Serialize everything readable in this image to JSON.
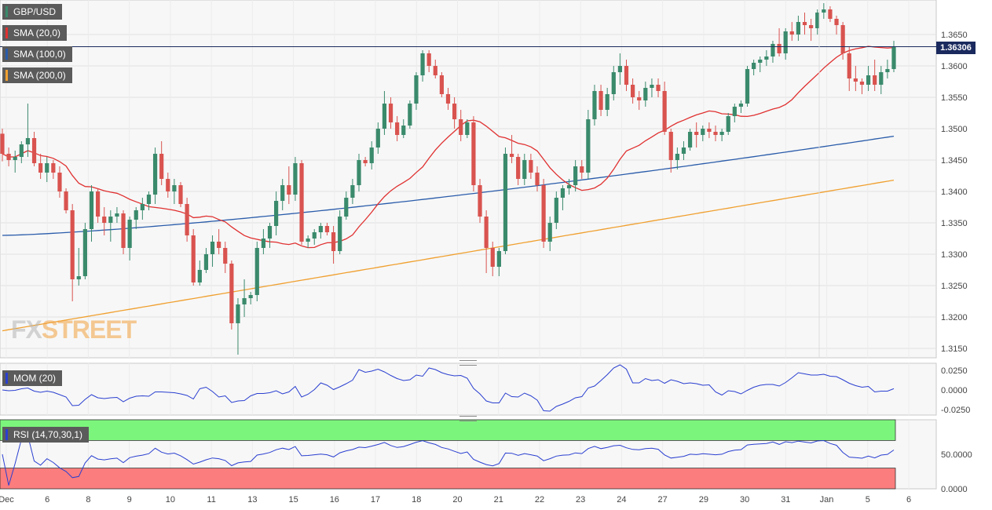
{
  "symbol": "GBP/USD",
  "legends": [
    {
      "label": "GBP/USD",
      "color": "#3a8a6c"
    },
    {
      "label": "SMA (20,0)",
      "color": "#e03030"
    },
    {
      "label": "SMA (100,0)",
      "color": "#2a5caa"
    },
    {
      "label": "SMA (200,0)",
      "color": "#f0a030"
    }
  ],
  "current_price": "1.36306",
  "watermark": {
    "fx": "FX",
    "street": "STREET"
  },
  "indicators": {
    "mom": {
      "label": "MOM (20)",
      "ticks": [
        "0.0250",
        "0.0000",
        "-0.0250"
      ]
    },
    "rsi": {
      "label": "RSI (14,70,30,1)",
      "ticks": [
        "50.0000",
        "0.0000"
      ]
    }
  },
  "colors": {
    "up": "#3a8a6c",
    "down": "#d9534f",
    "sma20": "#e03030",
    "sma100": "#2a5caa",
    "sma200": "#f0a030",
    "mom": "#2a3fd0",
    "rsi": "#2a3fd0",
    "overbought": "#7cf57c",
    "oversold": "#fb7d7d"
  },
  "chart_data": {
    "type": "candlestick",
    "y_ticks": [
      "1.3650",
      "1.3600",
      "1.3550",
      "1.3500",
      "1.3450",
      "1.3400",
      "1.3350",
      "1.3300",
      "1.3250",
      "1.3200",
      "1.3150"
    ],
    "ylim": [
      1.3135,
      1.3705
    ],
    "x_labels": [
      "Dec",
      "6",
      "8",
      "9",
      "10",
      "11",
      "13",
      "15",
      "16",
      "17",
      "18",
      "20",
      "21",
      "22",
      "23",
      "24",
      "27",
      "29",
      "30",
      "31",
      "Jan",
      "5",
      "6"
    ],
    "candles": [
      [
        1.3492,
        1.35,
        1.3448,
        1.346
      ],
      [
        1.346,
        1.347,
        1.344,
        1.345
      ],
      [
        1.345,
        1.3465,
        1.343,
        1.3455
      ],
      [
        1.3455,
        1.348,
        1.3445,
        1.3475
      ],
      [
        1.3475,
        1.354,
        1.3455,
        1.3485
      ],
      [
        1.3485,
        1.3495,
        1.344,
        1.3445
      ],
      [
        1.3445,
        1.346,
        1.342,
        1.343
      ],
      [
        1.343,
        1.3455,
        1.3415,
        1.3445
      ],
      [
        1.3445,
        1.345,
        1.342,
        1.343
      ],
      [
        1.343,
        1.344,
        1.339,
        1.34
      ],
      [
        1.34,
        1.3405,
        1.3365,
        1.337
      ],
      [
        1.337,
        1.338,
        1.3225,
        1.326
      ],
      [
        1.326,
        1.331,
        1.325,
        1.3265
      ],
      [
        1.3265,
        1.335,
        1.326,
        1.334
      ],
      [
        1.334,
        1.341,
        1.332,
        1.34
      ],
      [
        1.34,
        1.3405,
        1.335,
        1.336
      ],
      [
        1.336,
        1.3375,
        1.333,
        1.335
      ],
      [
        1.335,
        1.337,
        1.332,
        1.336
      ],
      [
        1.336,
        1.3375,
        1.335,
        1.3365
      ],
      [
        1.3365,
        1.337,
        1.33,
        1.331
      ],
      [
        1.331,
        1.336,
        1.329,
        1.3355
      ],
      [
        1.3355,
        1.3375,
        1.334,
        1.337
      ],
      [
        1.337,
        1.339,
        1.3355,
        1.338
      ],
      [
        1.338,
        1.34,
        1.337,
        1.3395
      ],
      [
        1.3395,
        1.347,
        1.338,
        1.346
      ],
      [
        1.346,
        1.348,
        1.341,
        1.342
      ],
      [
        1.342,
        1.343,
        1.339,
        1.34
      ],
      [
        1.34,
        1.342,
        1.338,
        1.341
      ],
      [
        1.341,
        1.3415,
        1.3375,
        1.338
      ],
      [
        1.338,
        1.339,
        1.332,
        1.333
      ],
      [
        1.333,
        1.334,
        1.325,
        1.3255
      ],
      [
        1.3255,
        1.329,
        1.325,
        1.3275
      ],
      [
        1.3275,
        1.331,
        1.327,
        1.33
      ],
      [
        1.33,
        1.333,
        1.328,
        1.332
      ],
      [
        1.332,
        1.334,
        1.33,
        1.331
      ],
      [
        1.331,
        1.332,
        1.327,
        1.3285
      ],
      [
        1.3285,
        1.329,
        1.318,
        1.319
      ],
      [
        1.319,
        1.323,
        1.314,
        1.322
      ],
      [
        1.322,
        1.326,
        1.32,
        1.323
      ],
      [
        1.323,
        1.324,
        1.322,
        1.3235
      ],
      [
        1.3235,
        1.332,
        1.3225,
        1.331
      ],
      [
        1.331,
        1.334,
        1.33,
        1.3325
      ],
      [
        1.3325,
        1.335,
        1.331,
        1.3345
      ],
      [
        1.3345,
        1.34,
        1.333,
        1.3385
      ],
      [
        1.3385,
        1.342,
        1.337,
        1.341
      ],
      [
        1.341,
        1.344,
        1.338,
        1.3395
      ],
      [
        1.3395,
        1.3455,
        1.3385,
        1.3445
      ],
      [
        1.3445,
        1.345,
        1.3315,
        1.332
      ],
      [
        1.332,
        1.333,
        1.331,
        1.3325
      ],
      [
        1.3325,
        1.334,
        1.3315,
        1.3335
      ],
      [
        1.3335,
        1.335,
        1.3325,
        1.3345
      ],
      [
        1.3345,
        1.335,
        1.333,
        1.3335
      ],
      [
        1.3335,
        1.3345,
        1.3285,
        1.3305
      ],
      [
        1.3305,
        1.337,
        1.33,
        1.336
      ],
      [
        1.336,
        1.34,
        1.3355,
        1.339
      ],
      [
        1.339,
        1.342,
        1.338,
        1.341
      ],
      [
        1.341,
        1.346,
        1.34,
        1.345
      ],
      [
        1.345,
        1.3455,
        1.344,
        1.3445
      ],
      [
        1.3445,
        1.348,
        1.3435,
        1.347
      ],
      [
        1.347,
        1.351,
        1.346,
        1.35
      ],
      [
        1.35,
        1.356,
        1.349,
        1.354
      ],
      [
        1.354,
        1.355,
        1.35,
        1.351
      ],
      [
        1.351,
        1.352,
        1.348,
        1.349
      ],
      [
        1.349,
        1.3515,
        1.3485,
        1.3505
      ],
      [
        1.3505,
        1.3545,
        1.35,
        1.354
      ],
      [
        1.354,
        1.359,
        1.353,
        1.3585
      ],
      [
        1.3585,
        1.3625,
        1.3575,
        1.362
      ],
      [
        1.362,
        1.3625,
        1.359,
        1.36
      ],
      [
        1.36,
        1.361,
        1.358,
        1.3585
      ],
      [
        1.3585,
        1.359,
        1.355,
        1.3555
      ],
      [
        1.3555,
        1.3565,
        1.353,
        1.354
      ],
      [
        1.354,
        1.355,
        1.35,
        1.3515
      ],
      [
        1.3515,
        1.353,
        1.348,
        1.349
      ],
      [
        1.349,
        1.3515,
        1.3485,
        1.351
      ],
      [
        1.351,
        1.352,
        1.34,
        1.341
      ],
      [
        1.341,
        1.342,
        1.335,
        1.336
      ],
      [
        1.336,
        1.337,
        1.327,
        1.331
      ],
      [
        1.331,
        1.332,
        1.3265,
        1.328
      ],
      [
        1.328,
        1.331,
        1.3265,
        1.3305
      ],
      [
        1.3305,
        1.347,
        1.33,
        1.346
      ],
      [
        1.346,
        1.349,
        1.3445,
        1.3455
      ],
      [
        1.3455,
        1.346,
        1.341,
        1.342
      ],
      [
        1.342,
        1.346,
        1.341,
        1.345
      ],
      [
        1.345,
        1.346,
        1.342,
        1.343
      ],
      [
        1.343,
        1.344,
        1.34,
        1.341
      ],
      [
        1.341,
        1.342,
        1.331,
        1.332
      ],
      [
        1.332,
        1.336,
        1.3305,
        1.335
      ],
      [
        1.335,
        1.34,
        1.334,
        1.339
      ],
      [
        1.339,
        1.341,
        1.337,
        1.3405
      ],
      [
        1.3405,
        1.342,
        1.3395,
        1.341
      ],
      [
        1.341,
        1.345,
        1.34,
        1.344
      ],
      [
        1.344,
        1.345,
        1.342,
        1.343
      ],
      [
        1.343,
        1.353,
        1.342,
        1.3515
      ],
      [
        1.3515,
        1.357,
        1.3505,
        1.356
      ],
      [
        1.356,
        1.357,
        1.352,
        1.353
      ],
      [
        1.353,
        1.3565,
        1.352,
        1.3555
      ],
      [
        1.3555,
        1.36,
        1.3545,
        1.359
      ],
      [
        1.359,
        1.362,
        1.357,
        1.36
      ],
      [
        1.36,
        1.361,
        1.356,
        1.357
      ],
      [
        1.357,
        1.358,
        1.354,
        1.355
      ],
      [
        1.355,
        1.356,
        1.353,
        1.3545
      ],
      [
        1.3545,
        1.3575,
        1.3535,
        1.3565
      ],
      [
        1.3565,
        1.358,
        1.355,
        1.357
      ],
      [
        1.357,
        1.358,
        1.355,
        1.356
      ],
      [
        1.356,
        1.3575,
        1.349,
        1.3495
      ],
      [
        1.3495,
        1.35,
        1.343,
        1.345
      ],
      [
        1.345,
        1.347,
        1.3435,
        1.346
      ],
      [
        1.346,
        1.348,
        1.345,
        1.347
      ],
      [
        1.347,
        1.35,
        1.3465,
        1.3495
      ],
      [
        1.3495,
        1.351,
        1.347,
        1.349
      ],
      [
        1.349,
        1.3505,
        1.348,
        1.35
      ],
      [
        1.35,
        1.351,
        1.3485,
        1.3495
      ],
      [
        1.3495,
        1.3505,
        1.348,
        1.349
      ],
      [
        1.349,
        1.35,
        1.348,
        1.3495
      ],
      [
        1.3495,
        1.3525,
        1.349,
        1.352
      ],
      [
        1.352,
        1.354,
        1.351,
        1.3535
      ],
      [
        1.3535,
        1.3545,
        1.3525,
        1.354
      ],
      [
        1.354,
        1.36,
        1.3535,
        1.3595
      ],
      [
        1.3595,
        1.361,
        1.3585,
        1.3605
      ],
      [
        1.3605,
        1.3615,
        1.359,
        1.361
      ],
      [
        1.361,
        1.3625,
        1.36,
        1.3615
      ],
      [
        1.3615,
        1.364,
        1.3605,
        1.3635
      ],
      [
        1.3635,
        1.366,
        1.3615,
        1.362
      ],
      [
        1.362,
        1.366,
        1.361,
        1.3655
      ],
      [
        1.3655,
        1.367,
        1.364,
        1.365
      ],
      [
        1.365,
        1.368,
        1.364,
        1.367
      ],
      [
        1.367,
        1.3685,
        1.365,
        1.3665
      ],
      [
        1.3665,
        1.3675,
        1.364,
        1.366
      ],
      [
        1.366,
        1.369,
        1.365,
        1.3685
      ],
      [
        1.3685,
        1.37,
        1.3675,
        1.369
      ],
      [
        1.369,
        1.3695,
        1.367,
        1.3675
      ],
      [
        1.3675,
        1.368,
        1.365,
        1.3665
      ],
      [
        1.3665,
        1.367,
        1.361,
        1.362
      ],
      [
        1.362,
        1.363,
        1.356,
        1.358
      ],
      [
        1.358,
        1.36,
        1.356,
        1.3575
      ],
      [
        1.3575,
        1.358,
        1.3555,
        1.357
      ],
      [
        1.357,
        1.36,
        1.356,
        1.3585
      ],
      [
        1.3585,
        1.361,
        1.356,
        1.357
      ],
      [
        1.357,
        1.36,
        1.3555,
        1.359
      ],
      [
        1.359,
        1.361,
        1.358,
        1.3595
      ],
      [
        1.3595,
        1.364,
        1.359,
        1.3631
      ]
    ]
  }
}
